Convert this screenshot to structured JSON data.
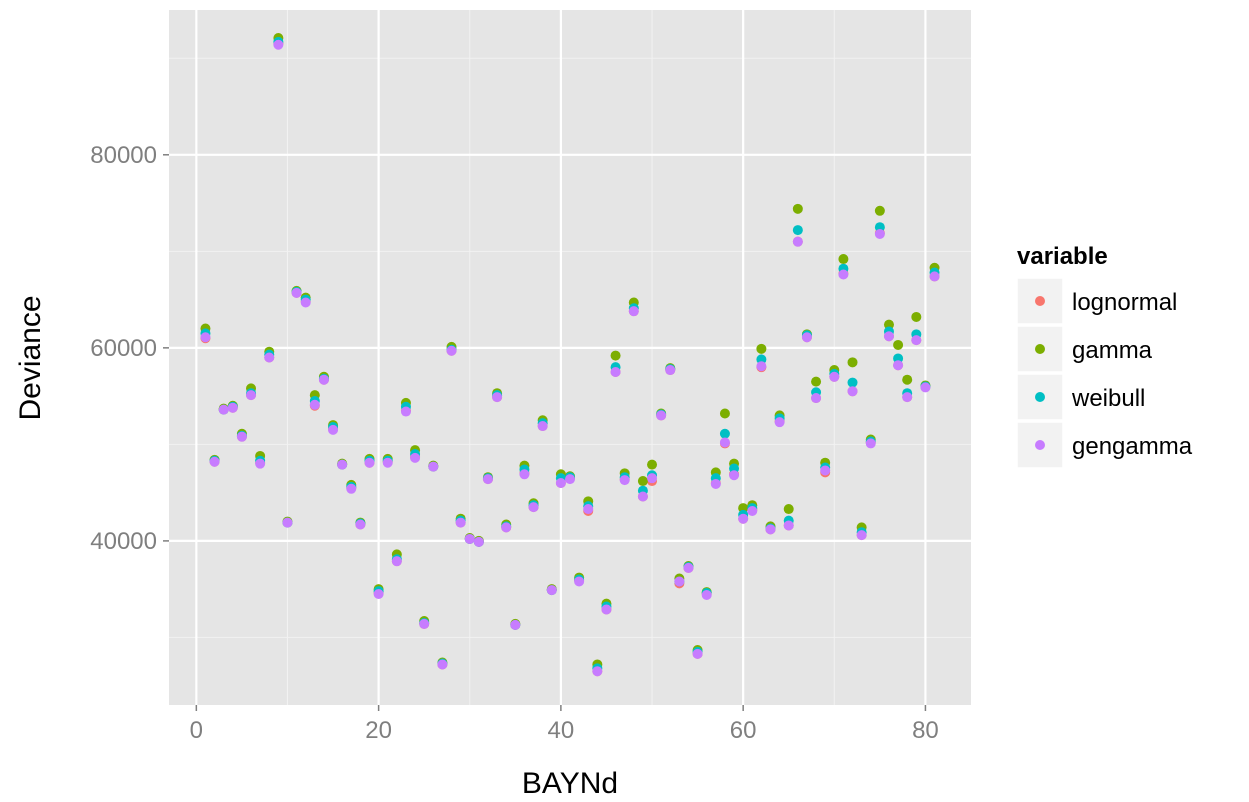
{
  "chart_data": {
    "type": "scatter",
    "title": "",
    "xlabel": "BAYNd",
    "ylabel": "Deviance",
    "xlim": [
      -3,
      85
    ],
    "ylim": [
      23000,
      95000
    ],
    "x_ticks": [
      0,
      20,
      40,
      60,
      80
    ],
    "y_ticks": [
      40000,
      60000,
      80000
    ],
    "x_tick_labels": [
      "0",
      "20",
      "40",
      "60",
      "80"
    ],
    "y_tick_labels": [
      "40000",
      "60000",
      "80000"
    ],
    "grid": true,
    "legend": {
      "title": "variable",
      "position": "right"
    },
    "series": [
      {
        "name": "lognormal",
        "color": "#F8766D",
        "x": [
          1,
          2,
          3,
          4,
          5,
          6,
          7,
          8,
          9,
          10,
          11,
          12,
          13,
          14,
          15,
          16,
          17,
          18,
          19,
          20,
          21,
          22,
          23,
          24,
          25,
          26,
          27,
          28,
          29,
          30,
          31,
          32,
          33,
          34,
          35,
          36,
          37,
          38,
          39,
          40,
          41,
          42,
          43,
          44,
          45,
          46,
          47,
          48,
          49,
          50,
          51,
          52,
          53,
          54,
          55,
          56,
          57,
          58,
          59,
          60,
          61,
          62,
          63,
          64,
          65,
          66,
          67,
          68,
          69,
          70,
          71,
          72,
          73,
          74,
          75,
          76,
          77,
          78,
          79,
          80,
          81
        ],
        "y": [
          61000,
          48200,
          53600,
          53800,
          50800,
          55100,
          48100,
          59000,
          91500,
          41900,
          65700,
          64800,
          54000,
          56700,
          51600,
          47900,
          45500,
          41700,
          48100,
          34600,
          48200,
          37900,
          53500,
          48700,
          31400,
          47700,
          27200,
          59700,
          41900,
          40200,
          39900,
          46400,
          54900,
          41400,
          31300,
          47000,
          43500,
          51900,
          34900,
          46000,
          46500,
          35900,
          43100,
          26500,
          32900,
          57500,
          46400,
          63800,
          44600,
          46200,
          53000,
          57700,
          35600,
          37200,
          28300,
          34500,
          46000,
          50100,
          46900,
          42300,
          43200,
          58000,
          41200,
          52400,
          41600,
          71000,
          61100,
          54800,
          47100,
          57000,
          67700,
          55500,
          40600,
          50200,
          71900,
          61200,
          58200,
          54900,
          60800,
          56000,
          67400
        ]
      },
      {
        "name": "gamma",
        "color": "#7CAE00",
        "x": [
          1,
          2,
          3,
          4,
          5,
          6,
          7,
          8,
          9,
          10,
          11,
          12,
          13,
          14,
          15,
          16,
          17,
          18,
          19,
          20,
          21,
          22,
          23,
          24,
          25,
          26,
          27,
          28,
          29,
          30,
          31,
          32,
          33,
          34,
          35,
          36,
          37,
          38,
          39,
          40,
          41,
          42,
          43,
          44,
          45,
          46,
          47,
          48,
          49,
          50,
          51,
          52,
          53,
          54,
          55,
          56,
          57,
          58,
          59,
          60,
          61,
          62,
          63,
          64,
          65,
          66,
          67,
          68,
          69,
          70,
          71,
          72,
          73,
          74,
          75,
          76,
          77,
          78,
          79,
          80,
          81
        ],
        "y": [
          62000,
          48400,
          53700,
          54000,
          51100,
          55800,
          48800,
          59600,
          92100,
          42000,
          65900,
          65200,
          55100,
          57000,
          52000,
          48000,
          45800,
          41900,
          48500,
          35000,
          48500,
          38600,
          54300,
          49400,
          31700,
          47800,
          27400,
          60100,
          42300,
          40300,
          40000,
          46600,
          55300,
          41700,
          31400,
          47800,
          43900,
          52500,
          35000,
          46900,
          46700,
          36200,
          44100,
          27200,
          33500,
          59200,
          47000,
          64700,
          46200,
          47900,
          53200,
          57900,
          36100,
          37400,
          28700,
          34700,
          47100,
          53200,
          48000,
          43400,
          43700,
          59900,
          41500,
          53000,
          43300,
          74400,
          61400,
          56500,
          48100,
          57700,
          69200,
          58500,
          41400,
          50500,
          74200,
          62400,
          60300,
          56700,
          63200,
          56100,
          68300
        ]
      },
      {
        "name": "weibull",
        "color": "#00BFC4",
        "x": [
          1,
          2,
          3,
          4,
          5,
          6,
          7,
          8,
          9,
          10,
          11,
          12,
          13,
          14,
          15,
          16,
          17,
          18,
          19,
          20,
          21,
          22,
          23,
          24,
          25,
          26,
          27,
          28,
          29,
          30,
          31,
          32,
          33,
          34,
          35,
          36,
          37,
          38,
          39,
          40,
          41,
          42,
          43,
          44,
          45,
          46,
          47,
          48,
          49,
          50,
          51,
          52,
          53,
          54,
          55,
          56,
          57,
          58,
          59,
          60,
          61,
          62,
          63,
          64,
          65,
          66,
          67,
          68,
          69,
          70,
          71,
          72,
          73,
          74,
          75,
          76,
          77,
          78,
          79,
          80,
          81
        ],
        "y": [
          61500,
          48300,
          53600,
          53900,
          50900,
          55300,
          48300,
          59300,
          91700,
          41900,
          65800,
          65000,
          54500,
          56800,
          51800,
          47900,
          45600,
          41800,
          48300,
          34800,
          48300,
          38100,
          53900,
          49000,
          31500,
          47700,
          27300,
          59800,
          42100,
          40200,
          39900,
          46500,
          55100,
          41500,
          31300,
          47400,
          43700,
          52200,
          34900,
          46500,
          46600,
          36000,
          43600,
          26800,
          33200,
          58000,
          46600,
          64100,
          45200,
          46800,
          53100,
          57800,
          35800,
          37300,
          28500,
          34600,
          46500,
          51100,
          47500,
          42700,
          43400,
          58800,
          41300,
          52700,
          42100,
          72200,
          61300,
          55400,
          47600,
          57300,
          68200,
          56400,
          40900,
          50300,
          72500,
          61700,
          58900,
          55300,
          61400,
          56000,
          67800
        ]
      },
      {
        "name": "gengamma",
        "color": "#C77CFF",
        "x": [
          1,
          2,
          3,
          4,
          5,
          6,
          7,
          8,
          9,
          10,
          11,
          12,
          13,
          14,
          15,
          16,
          17,
          18,
          19,
          20,
          21,
          22,
          23,
          24,
          25,
          26,
          27,
          28,
          29,
          30,
          31,
          32,
          33,
          34,
          35,
          36,
          37,
          38,
          39,
          40,
          41,
          42,
          43,
          44,
          45,
          46,
          47,
          48,
          49,
          50,
          51,
          52,
          53,
          54,
          55,
          56,
          57,
          58,
          59,
          60,
          61,
          62,
          63,
          64,
          65,
          66,
          67,
          68,
          69,
          70,
          71,
          72,
          73,
          74,
          75,
          76,
          77,
          78,
          79,
          80,
          81
        ],
        "y": [
          61100,
          48200,
          53600,
          53800,
          50800,
          55100,
          48000,
          59000,
          91400,
          41900,
          65700,
          64700,
          54100,
          56700,
          51500,
          47900,
          45400,
          41700,
          48100,
          34500,
          48100,
          37900,
          53400,
          48600,
          31400,
          47700,
          27200,
          59700,
          41900,
          40200,
          39900,
          46400,
          54900,
          41400,
          31300,
          46900,
          43500,
          51900,
          34900,
          46000,
          46400,
          35800,
          43300,
          26500,
          32900,
          57500,
          46300,
          63800,
          44600,
          46500,
          53000,
          57700,
          35800,
          37200,
          28300,
          34400,
          45900,
          50200,
          46800,
          42300,
          43100,
          58100,
          41200,
          52300,
          41600,
          71000,
          61100,
          54800,
          47300,
          57000,
          67600,
          55500,
          40600,
          50100,
          71800,
          61200,
          58200,
          54900,
          60800,
          55900,
          67400
        ]
      }
    ]
  }
}
